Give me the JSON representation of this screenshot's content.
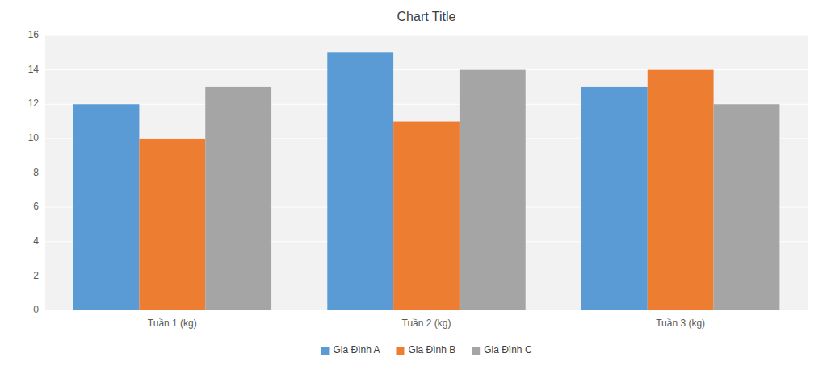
{
  "chart_data": {
    "type": "bar",
    "title": "Chart Title",
    "categories": [
      "Tuần 1 (kg)",
      "Tuần 2 (kg)",
      "Tuần 3 (kg)"
    ],
    "series": [
      {
        "name": "Gia Đình A",
        "values": [
          12,
          15,
          13
        ],
        "color": "#5B9BD5"
      },
      {
        "name": "Gia Đình B",
        "values": [
          10,
          11,
          14
        ],
        "color": "#ED7D31"
      },
      {
        "name": "Gia Đình C",
        "values": [
          13,
          14,
          12
        ],
        "color": "#A5A5A5"
      }
    ],
    "ylim": [
      0,
      16
    ],
    "yticks": [
      0,
      2,
      4,
      6,
      8,
      10,
      12,
      14,
      16
    ],
    "grid": true,
    "legend": "bottom"
  }
}
